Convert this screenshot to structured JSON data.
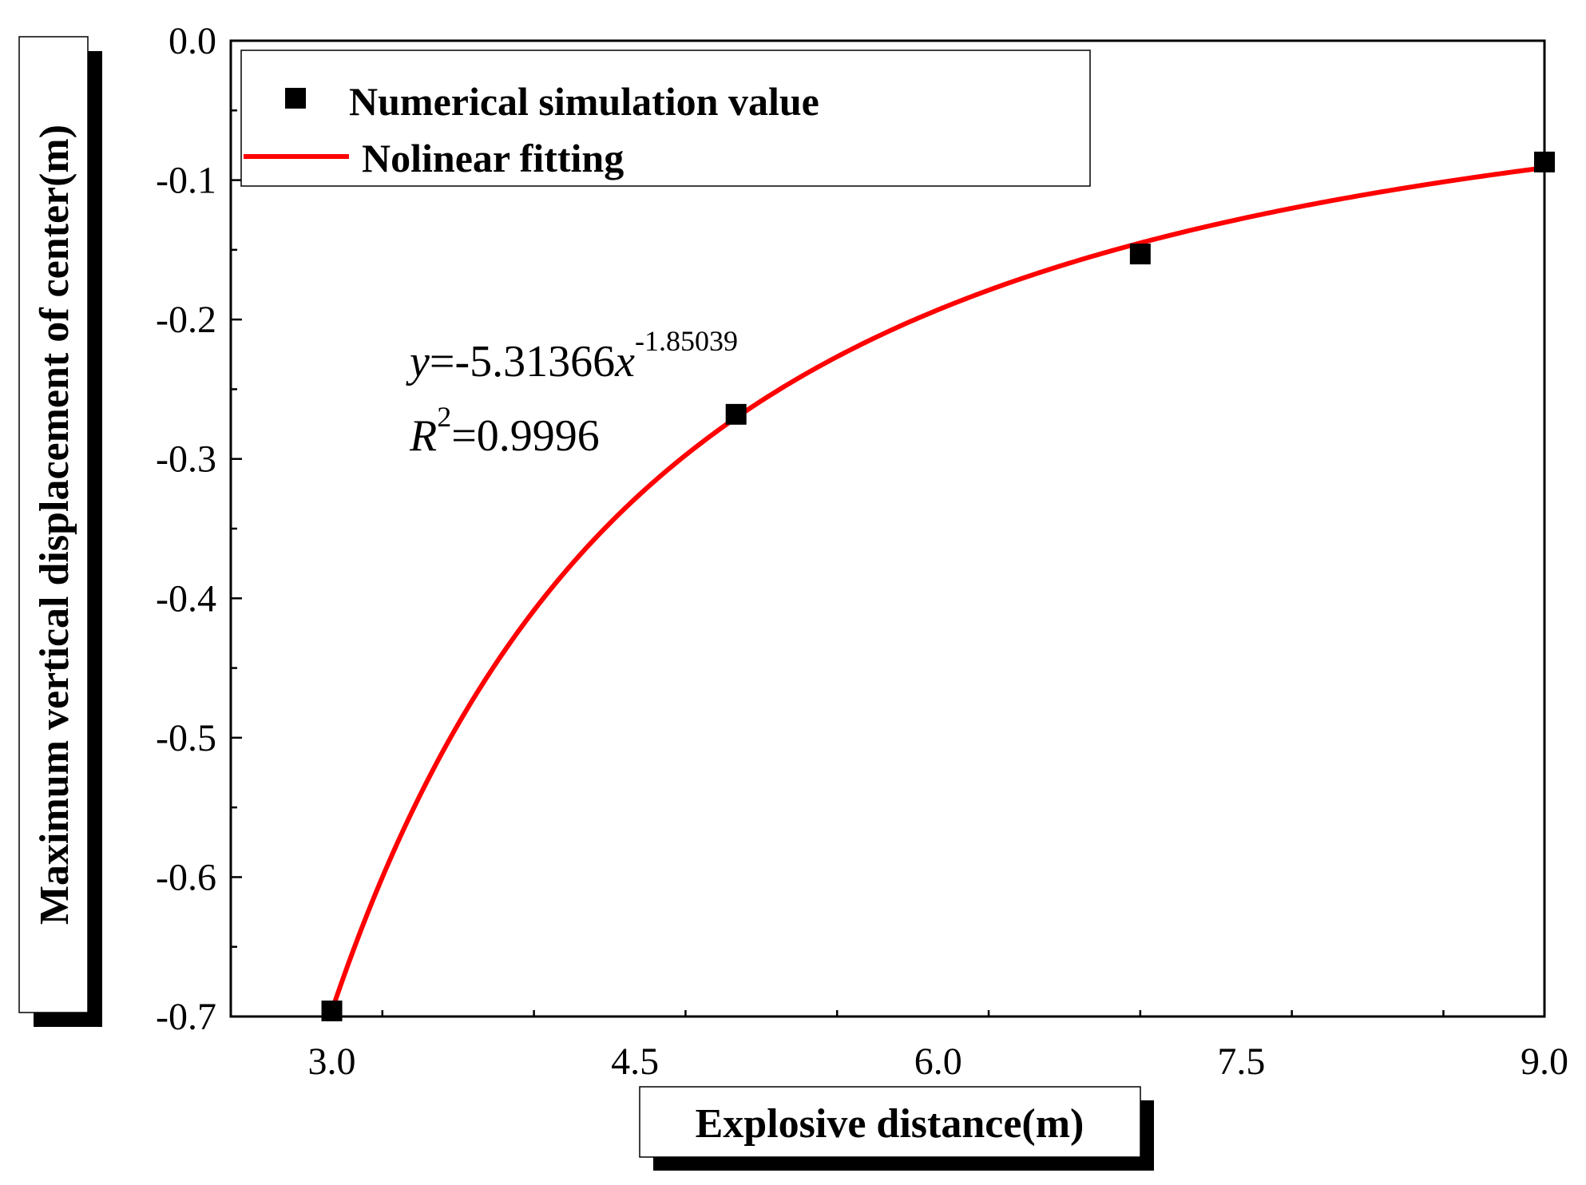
{
  "chart_data": {
    "type": "scatter",
    "xlabel": "Explosive distance(m)",
    "ylabel": "Maximum vertical displacement of center(m)",
    "xlim": [
      2.5,
      9.0
    ],
    "ylim": [
      -0.7,
      0.0
    ],
    "x_ticks": [
      3.0,
      4.5,
      6.0,
      7.5,
      9.0
    ],
    "x_tick_labels": [
      "3.0",
      "4.5",
      "6.0",
      "7.5",
      "9.0"
    ],
    "x_minor_step": 0.75,
    "y_ticks": [
      0.0,
      -0.1,
      -0.2,
      -0.3,
      -0.4,
      -0.5,
      -0.6,
      -0.7
    ],
    "y_tick_labels": [
      "0.0",
      "-0.1",
      "-0.2",
      "-0.3",
      "-0.4",
      "-0.5",
      "-0.6",
      "-0.7"
    ],
    "y_minor_step": 0.05,
    "series": [
      {
        "name": "Numerical simulation value",
        "kind": "scatter",
        "color": "#000000",
        "marker": "square",
        "x": [
          3.0,
          5.0,
          7.0,
          9.0
        ],
        "y": [
          -0.696,
          -0.268,
          -0.153,
          -0.087
        ]
      },
      {
        "name": "Nolinear fitting",
        "kind": "line",
        "color": "#ff0000",
        "function": "power",
        "a": -5.31366,
        "b": -1.85039,
        "x_range": [
          3.0,
          9.0
        ]
      }
    ],
    "annotation": {
      "eq_y": "y",
      "eq_main": "=-5.31366",
      "eq_x": "x",
      "eq_exp": "-1.85039",
      "r_label": "R",
      "r_sup": "2",
      "r_value": "=0.9996"
    }
  }
}
